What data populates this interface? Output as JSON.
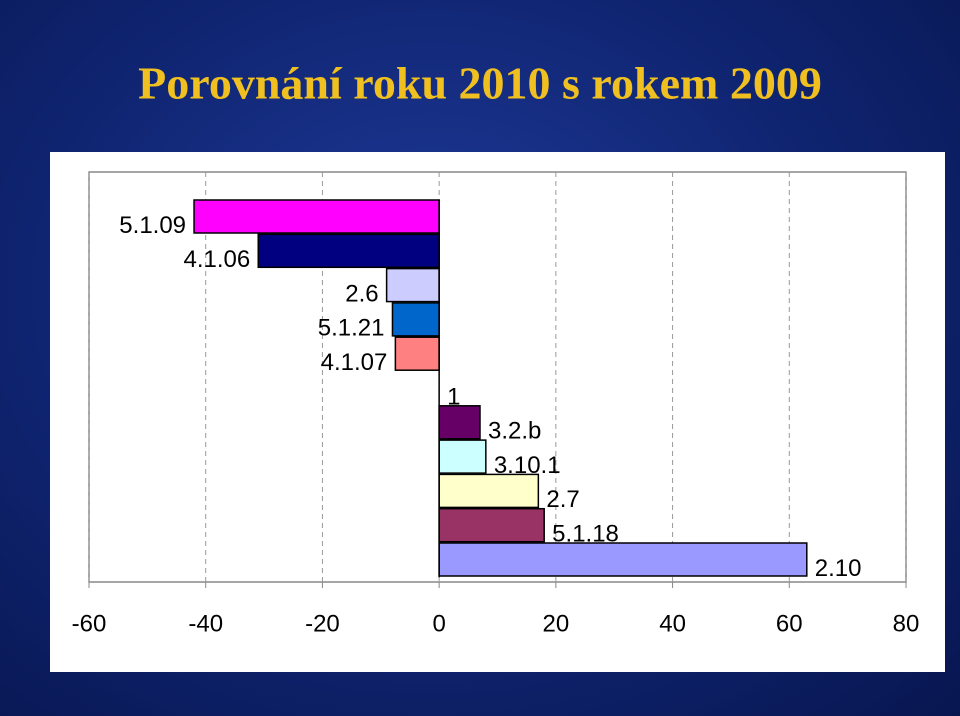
{
  "chart_data": {
    "type": "bar",
    "orientation": "horizontal",
    "title": "Porovnání roku 2010 s rokem 2009",
    "categories": [
      "5.1.09",
      "4.1.06",
      "2.6",
      "5.1.21",
      "4.1.07",
      "1",
      "3.2.b",
      "3.10.1",
      "2.7",
      "5.1.18",
      "2.10"
    ],
    "values": [
      -42,
      -31,
      -9,
      -8,
      -7.5,
      0,
      7,
      8,
      17,
      18,
      63
    ],
    "colors": [
      "#ff00ff",
      "#000080",
      "#ccccff",
      "#0066cc",
      "#ff8080",
      "#ffffff",
      "#660066",
      "#ccffff",
      "#ffffcc",
      "#993366",
      "#9999ff"
    ],
    "xlim": [
      -60,
      80
    ],
    "xticks": [
      -60,
      -40,
      -20,
      0,
      20,
      40,
      60,
      80
    ],
    "grid": true
  }
}
